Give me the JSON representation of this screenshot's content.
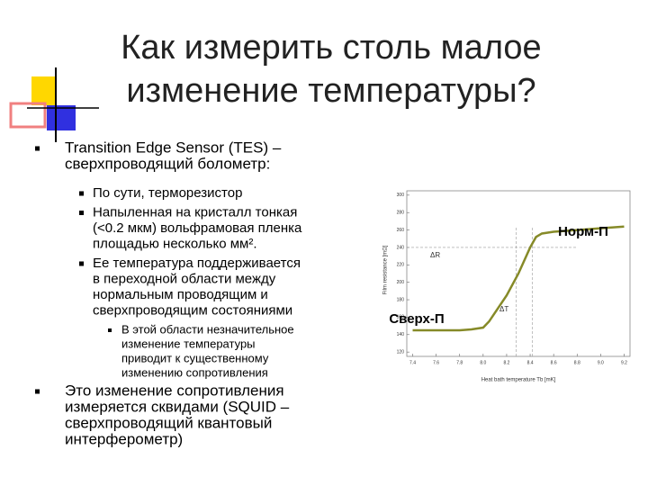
{
  "title": [
    "Как измерить столь малое",
    "изменение температуры?"
  ],
  "bullets": [
    {
      "level": 1,
      "lines": [
        "Transition Edge Sensor (TES) –",
        "сверхпроводящий болометр:"
      ]
    },
    {
      "level": 2,
      "lines": [
        "По сути, терморезистор"
      ]
    },
    {
      "level": 2,
      "lines": [
        "Напыленная на кристалл тонкая",
        "(<0.2 мкм) вольфрамовая пленка",
        "площадью несколько мм²."
      ]
    },
    {
      "level": 2,
      "lines": [
        "Ее температура поддерживается",
        "в переходной области между",
        "нормальным проводящим и",
        "сверхпроводящим состояниями"
      ]
    },
    {
      "level": 3,
      "lines": [
        "В этой области незначительное",
        "изменение температуры",
        "приводит к существенному",
        "изменению сопротивления"
      ]
    },
    {
      "level": 1,
      "lines": [
        "Это изменение сопротивления",
        "измеряется сквидами (SQUID –",
        "сверхпроводящий квантовый",
        "интерферометр)"
      ]
    }
  ],
  "chart": {
    "type": "line",
    "x_label": "Heat bath temperature Tb [mK]",
    "y_label": "Film resistance [mΩ]",
    "x": [
      7.4,
      7.6,
      7.8,
      7.9,
      8.0,
      8.05,
      8.1,
      8.2,
      8.3,
      8.4,
      8.45,
      8.5,
      8.6,
      8.8,
      9.0,
      9.2
    ],
    "values": [
      145,
      145,
      145,
      146,
      148,
      155,
      165,
      185,
      210,
      240,
      252,
      256,
      258,
      260,
      262,
      264
    ],
    "color": "#868a28",
    "xlim": [
      7.35,
      9.25
    ],
    "ylim": [
      115,
      305
    ],
    "xticks": [
      7.4,
      7.6,
      7.8,
      {
        "value": 8,
        "label": "8.0"
      },
      8.2,
      8.4,
      8.6,
      8.8,
      {
        "value": 9,
        "label": "9.0"
      },
      9.2
    ],
    "yticks": [
      120,
      140,
      160,
      180,
      200,
      220,
      240,
      260,
      280,
      300
    ],
    "guides_y": [
      240
    ],
    "guides_x": [
      8.28,
      8.42
    ],
    "annotations": [
      "Норм-П",
      "Сверх-П",
      "ΔR",
      "ΔT"
    ]
  }
}
